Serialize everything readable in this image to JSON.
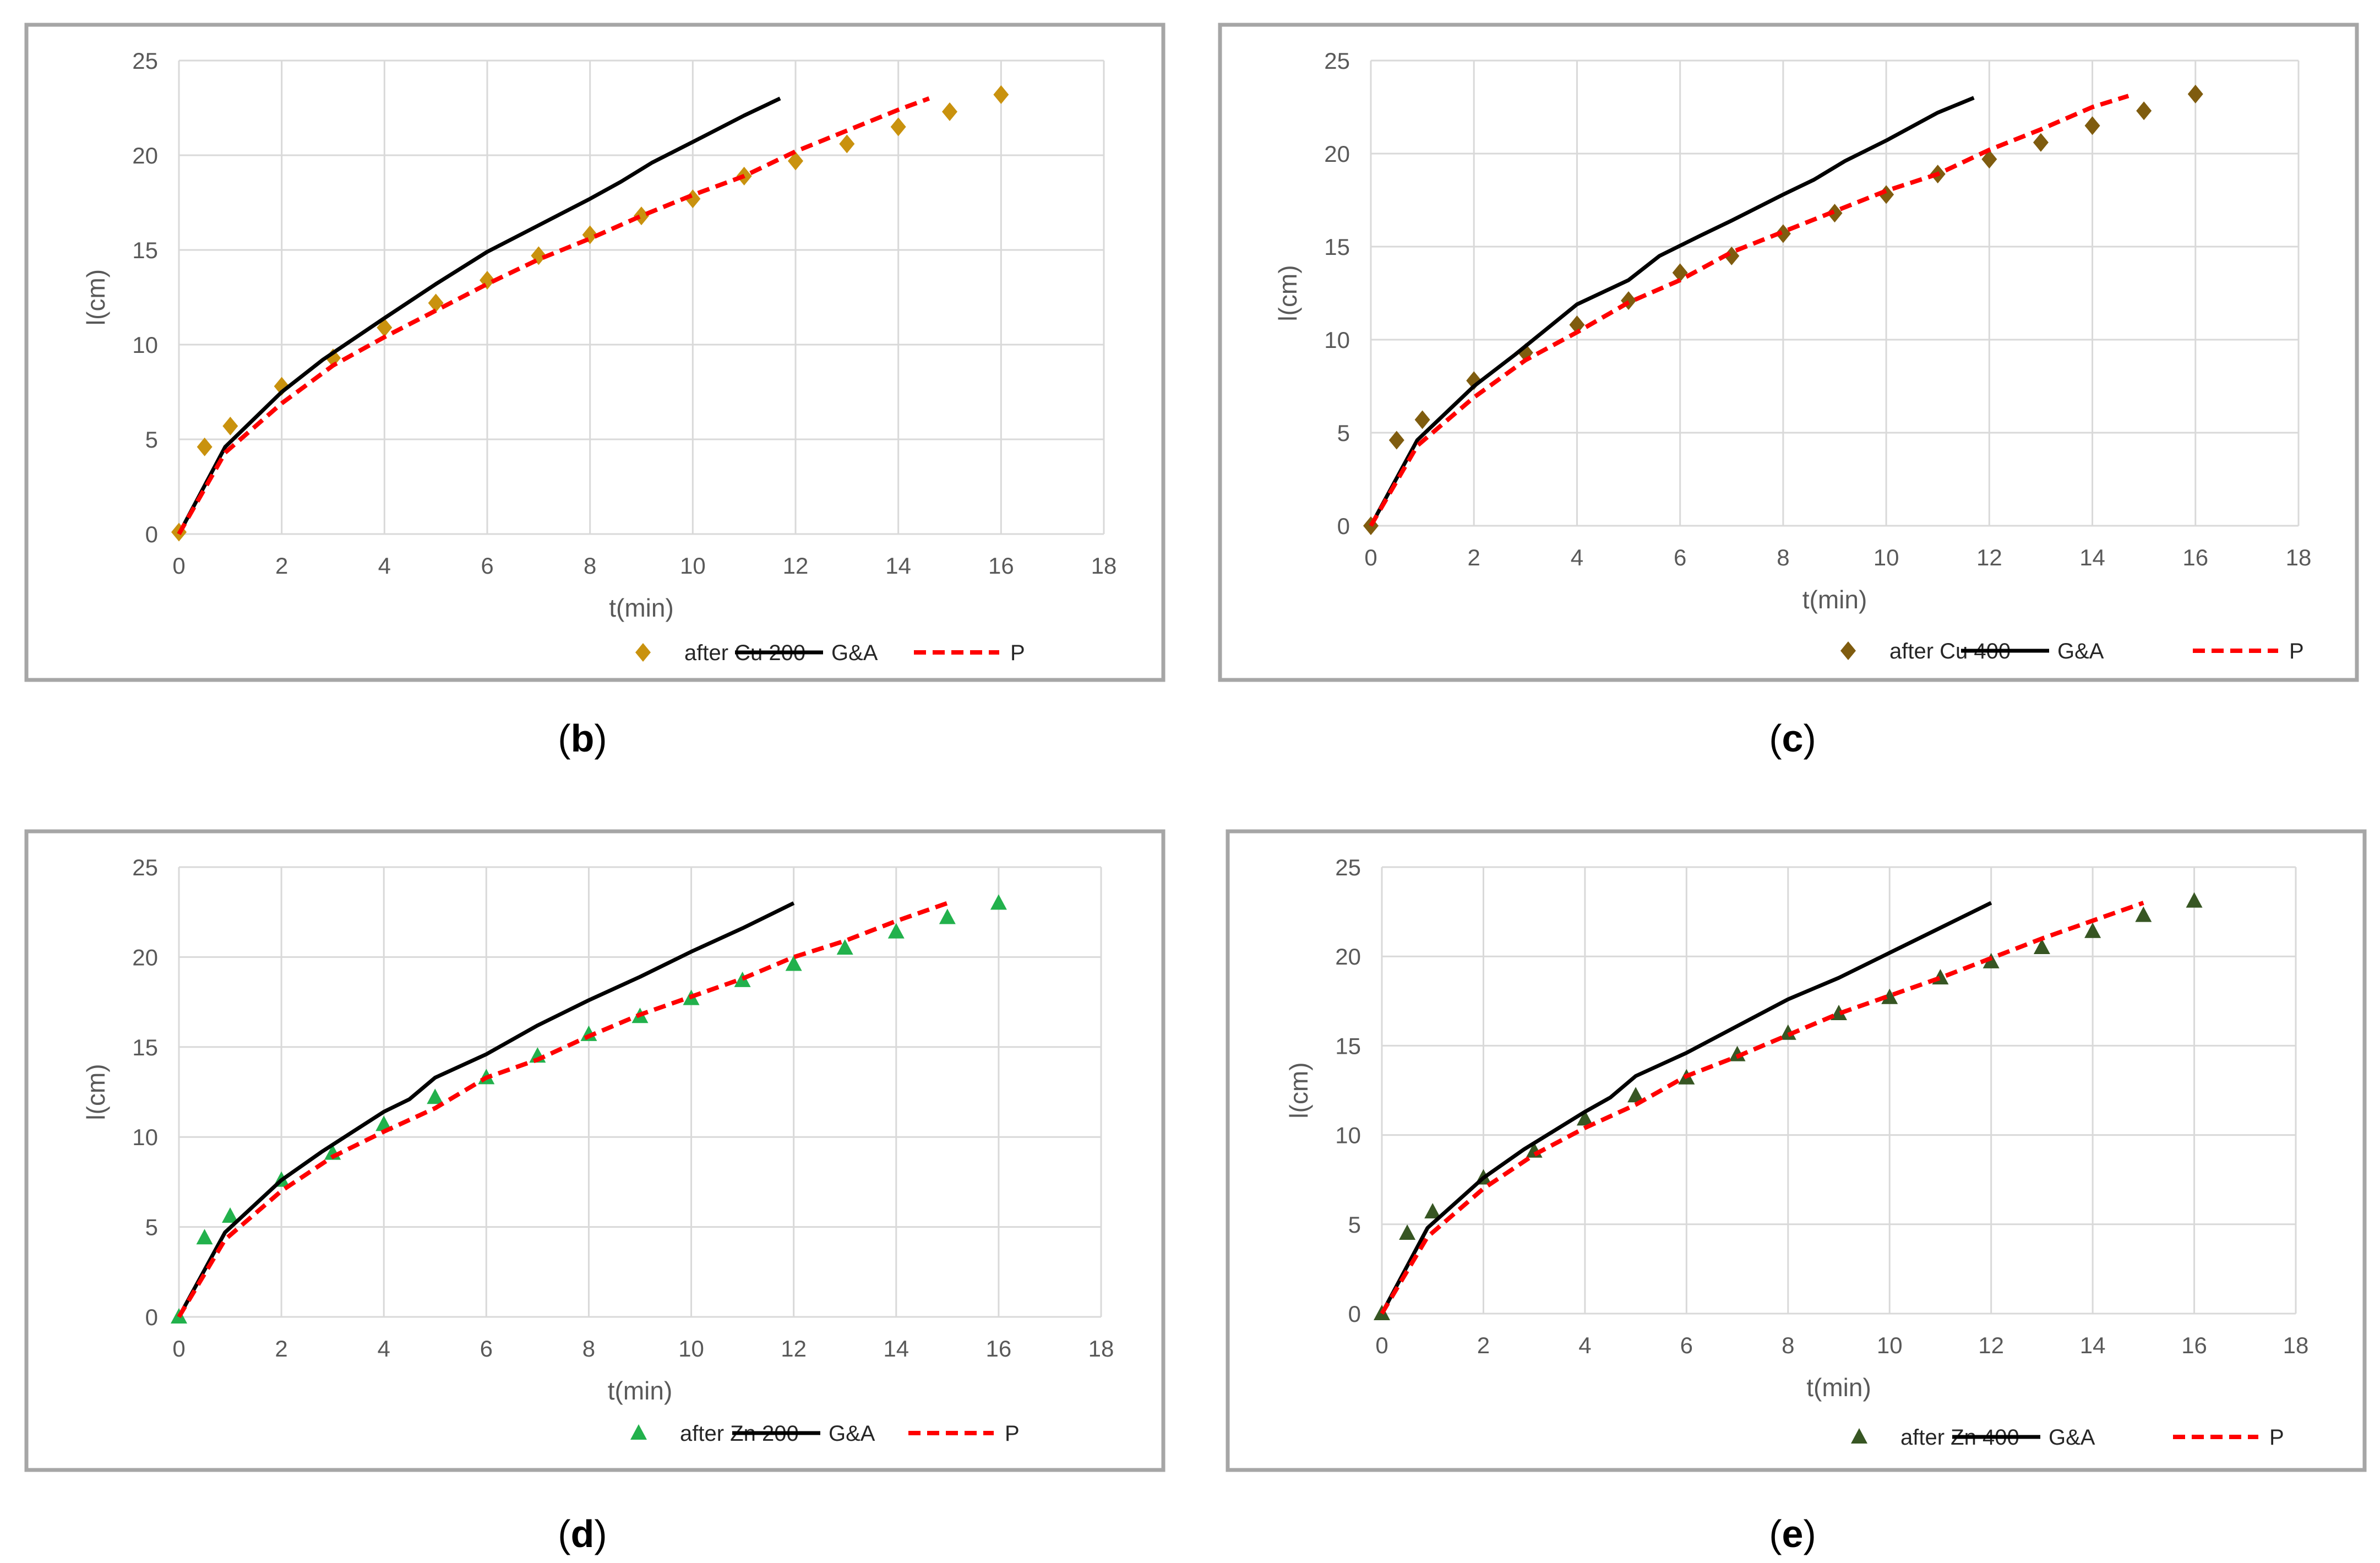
{
  "chart_data": [
    {
      "type": "scatter+line",
      "panel_label": "b",
      "xlabel": "t(min)",
      "ylabel": "l(cm)",
      "xlim": [
        0,
        18
      ],
      "ylim": [
        0,
        25
      ],
      "xticks": [
        "0",
        "2",
        "4",
        "6",
        "8",
        "10",
        "12",
        "14",
        "16",
        "18"
      ],
      "yticks": [
        "0",
        "5",
        "10",
        "15",
        "20",
        "25"
      ],
      "marker": "diamond",
      "series": [
        {
          "name": "after Cu 200",
          "kind": "marker",
          "color": "#c9920e",
          "x": [
            0,
            0.5,
            1,
            2,
            3,
            4,
            5,
            6,
            7,
            8,
            9,
            10,
            11,
            12,
            13,
            14,
            15,
            16
          ],
          "y": [
            0.1,
            4.6,
            5.7,
            7.8,
            9.3,
            10.9,
            12.2,
            13.4,
            14.7,
            15.8,
            16.8,
            17.7,
            18.9,
            19.7,
            20.6,
            21.5,
            22.3,
            23.2
          ]
        },
        {
          "name": "G&A",
          "kind": "line",
          "color": "#000000",
          "x": [
            0,
            0.9,
            2,
            2.8,
            4,
            5,
            6,
            7,
            8,
            8.6,
            9.2,
            10,
            11,
            11.7
          ],
          "y": [
            0,
            4.6,
            7.5,
            9.2,
            11.4,
            13.2,
            14.9,
            16.3,
            17.7,
            18.6,
            19.6,
            20.7,
            22.1,
            23
          ]
        },
        {
          "name": "P",
          "kind": "dashed",
          "color": "#ff0000",
          "x": [
            0,
            0.9,
            2,
            3,
            4,
            5,
            6,
            7,
            8,
            9,
            10,
            11,
            12,
            13,
            14,
            14.6
          ],
          "y": [
            0,
            4.3,
            6.9,
            8.9,
            10.4,
            11.8,
            13.2,
            14.5,
            15.6,
            16.8,
            17.9,
            18.9,
            20.2,
            21.3,
            22.4,
            23
          ]
        }
      ]
    },
    {
      "type": "scatter+line",
      "panel_label": "c",
      "xlabel": "t(min)",
      "ylabel": "l(cm)",
      "xlim": [
        0,
        18
      ],
      "ylim": [
        0,
        25
      ],
      "xticks": [
        "0",
        "2",
        "4",
        "6",
        "8",
        "10",
        "12",
        "14",
        "16",
        "18"
      ],
      "yticks": [
        "0",
        "5",
        "10",
        "15",
        "20",
        "25"
      ],
      "marker": "diamond",
      "series": [
        {
          "name": "after Cu 400",
          "kind": "marker",
          "color": "#7f5c0f",
          "x": [
            0,
            0.5,
            1,
            2,
            3,
            4,
            5,
            6,
            7,
            8,
            9,
            10,
            11,
            12,
            13,
            14,
            15,
            16
          ],
          "y": [
            0,
            4.6,
            5.7,
            7.8,
            9.3,
            10.8,
            12.1,
            13.6,
            14.5,
            15.7,
            16.8,
            17.8,
            18.9,
            19.7,
            20.6,
            21.5,
            22.3,
            23.2
          ]
        },
        {
          "name": "G&A",
          "kind": "line",
          "color": "#000000",
          "x": [
            0,
            0.9,
            2,
            2.8,
            4,
            5,
            5.6,
            6.4,
            7,
            8,
            8.6,
            9.2,
            10,
            11,
            11.7
          ],
          "y": [
            0,
            4.6,
            7.5,
            9.2,
            11.9,
            13.2,
            14.5,
            15.6,
            16.4,
            17.8,
            18.6,
            19.6,
            20.7,
            22.2,
            23
          ]
        },
        {
          "name": "P",
          "kind": "dashed",
          "color": "#ff0000",
          "x": [
            0,
            0.9,
            2,
            3,
            4,
            5,
            6,
            7,
            8,
            9,
            10,
            11,
            12,
            13,
            14,
            14.7
          ],
          "y": [
            0,
            4.3,
            6.9,
            8.9,
            10.4,
            12,
            13.2,
            14.7,
            15.8,
            16.9,
            18,
            18.9,
            20.2,
            21.3,
            22.5,
            23.1
          ]
        }
      ]
    },
    {
      "type": "scatter+line",
      "panel_label": "d",
      "xlabel": "t(min)",
      "ylabel": "l(cm)",
      "xlim": [
        0,
        18
      ],
      "ylim": [
        0,
        25
      ],
      "xticks": [
        "0",
        "2",
        "4",
        "6",
        "8",
        "10",
        "12",
        "14",
        "16",
        "18"
      ],
      "yticks": [
        "0",
        "5",
        "10",
        "15",
        "20",
        "25"
      ],
      "marker": "triangle",
      "series": [
        {
          "name": "after Zn 200",
          "kind": "marker",
          "color": "#22b14c",
          "x": [
            0,
            0.5,
            1,
            2,
            3,
            4,
            5,
            6,
            7,
            8,
            9,
            10,
            11,
            12,
            13,
            14,
            15,
            16
          ],
          "y": [
            0,
            4.4,
            5.6,
            7.6,
            9.1,
            10.7,
            12.2,
            13.3,
            14.5,
            15.7,
            16.7,
            17.7,
            18.7,
            19.6,
            20.5,
            21.4,
            22.2,
            23
          ]
        },
        {
          "name": "G&A",
          "kind": "line",
          "color": "#000000",
          "x": [
            0,
            0.9,
            2,
            2.8,
            4,
            4.5,
            5,
            6,
            7,
            8,
            9,
            10,
            11,
            12
          ],
          "y": [
            0,
            4.7,
            7.6,
            9.2,
            11.4,
            12.1,
            13.3,
            14.6,
            16.2,
            17.6,
            18.9,
            20.3,
            21.6,
            23
          ]
        },
        {
          "name": "P",
          "kind": "dashed",
          "color": "#ff0000",
          "x": [
            0,
            0.9,
            2,
            3,
            4,
            5,
            6,
            7,
            8,
            9,
            10,
            11,
            12,
            13,
            14,
            15
          ],
          "y": [
            0,
            4.3,
            7,
            8.9,
            10.3,
            11.6,
            13.3,
            14.3,
            15.6,
            16.8,
            17.8,
            18.8,
            20,
            20.9,
            22,
            23
          ]
        }
      ]
    },
    {
      "type": "scatter+line",
      "panel_label": "e",
      "xlabel": "t(min)",
      "ylabel": "l(cm)",
      "xlim": [
        0,
        18
      ],
      "ylim": [
        0,
        25
      ],
      "xticks": [
        "0",
        "2",
        "4",
        "6",
        "8",
        "10",
        "12",
        "14",
        "16",
        "18"
      ],
      "yticks": [
        "0",
        "5",
        "10",
        "15",
        "20",
        "25"
      ],
      "marker": "triangle",
      "series": [
        {
          "name": "after Zn 400",
          "kind": "marker",
          "color": "#375623",
          "x": [
            0,
            0.5,
            1,
            2,
            3,
            4,
            5,
            6,
            7,
            8,
            9,
            10,
            11,
            12,
            13,
            14,
            15,
            16
          ],
          "y": [
            0,
            4.5,
            5.7,
            7.6,
            9.1,
            10.9,
            12.2,
            13.2,
            14.5,
            15.7,
            16.8,
            17.7,
            18.8,
            19.7,
            20.5,
            21.4,
            22.3,
            23.1
          ]
        },
        {
          "name": "G&A",
          "kind": "line",
          "color": "#000000",
          "x": [
            0,
            0.9,
            2,
            2.8,
            4,
            4.5,
            5,
            6,
            7,
            8,
            9,
            10,
            11,
            12
          ],
          "y": [
            0,
            4.8,
            7.6,
            9.2,
            11.3,
            12.1,
            13.3,
            14.6,
            16.1,
            17.6,
            18.8,
            20.2,
            21.6,
            23
          ]
        },
        {
          "name": "P",
          "kind": "dashed",
          "color": "#ff0000",
          "x": [
            0,
            0.9,
            2,
            3,
            4,
            5,
            6,
            7,
            8,
            9,
            10,
            11,
            12,
            13,
            14,
            15
          ],
          "y": [
            0,
            4.3,
            7,
            8.9,
            10.4,
            11.7,
            13.3,
            14.4,
            15.6,
            16.8,
            17.8,
            18.8,
            19.9,
            21,
            22,
            23
          ]
        }
      ]
    }
  ]
}
